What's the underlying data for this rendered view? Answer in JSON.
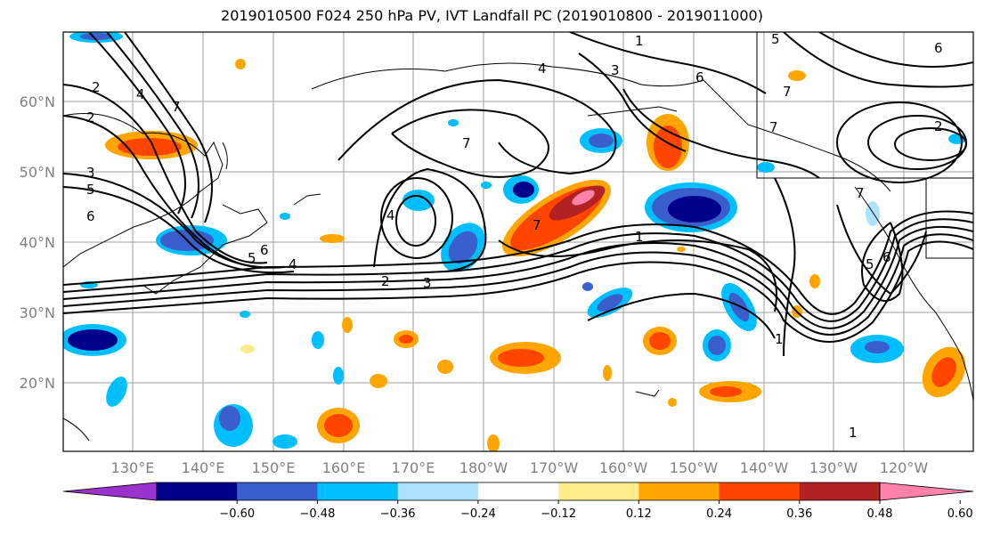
{
  "title": "2019010500 F024 250 hPa PV, IVT Landfall PC (2019010800 - 2019011000)",
  "lat_labels": [
    "60°N",
    "50°N",
    "40°N",
    "30°N",
    "20°N"
  ],
  "lon_labels": [
    "130°E",
    "140°E",
    "150°E",
    "160°E",
    "170°E",
    "180°W",
    "170°W",
    "160°W",
    "150°W",
    "140°W",
    "130°W",
    "120°W"
  ],
  "colorbar": {
    "colors": [
      "#9a32cd",
      "#00008b",
      "#3a5fcd",
      "#00bfff",
      "#b0e2ff",
      "#ffffff",
      "#ffec8b",
      "#ffa500",
      "#ff4500",
      "#b22222",
      "#ff82ab"
    ],
    "ticks": [
      "−0.60",
      "−0.48",
      "−0.36",
      "−0.24",
      "−0.12",
      "0.12",
      "0.24",
      "0.36",
      "0.48",
      "0.60"
    ]
  },
  "contour_labels": [
    "2",
    "2",
    "3",
    "5",
    "6",
    "7",
    "4",
    "7",
    "7",
    "1",
    "4",
    "3",
    "6",
    "5",
    "6",
    "7",
    "2",
    "7",
    "6",
    "5",
    "4",
    "2",
    "3",
    "1",
    "1",
    "4",
    "5",
    "6",
    "7",
    "1"
  ]
}
